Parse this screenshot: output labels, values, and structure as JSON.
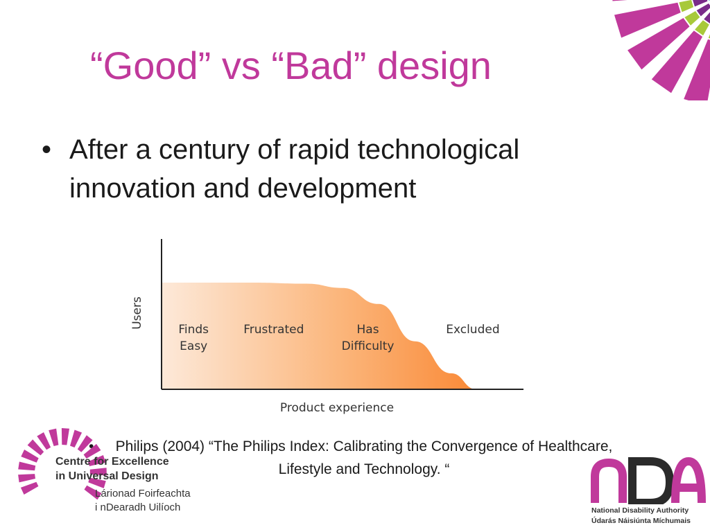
{
  "slide": {
    "title": "“Good” vs “Bad” design",
    "bullet_symbol": "•",
    "bullet_text": "After a century of rapid technological innovation and development",
    "reference_symbol": "•",
    "reference_text": "Philips (2004) “The Philips Index: Calibrating the Convergence of Healthcare, Lifestyle and Technology. “"
  },
  "chart_data": {
    "type": "area",
    "xlabel": "Product experience",
    "ylabel": "Users",
    "regions": [
      {
        "label_lines": [
          "Finds",
          "Easy"
        ]
      },
      {
        "label_lines": [
          "Frustrated"
        ]
      },
      {
        "label_lines": [
          "Has",
          "Difficulty"
        ]
      },
      {
        "label_lines": [
          "Excluded"
        ]
      }
    ],
    "curve": [
      [
        0,
        100
      ],
      [
        25,
        100
      ],
      [
        40,
        99
      ],
      [
        50,
        95
      ],
      [
        60,
        80
      ],
      [
        70,
        45
      ],
      [
        80,
        15
      ],
      [
        87,
        0
      ],
      [
        100,
        0
      ]
    ],
    "gradient_colors": [
      "#fde9d9",
      "#fbb57a",
      "#f97a1f"
    ],
    "grid": false
  },
  "logos": {
    "ceud": {
      "line1": "Centre for Excellence",
      "line2": "in Universal Design",
      "line3": "Lárionad Foirfeachta",
      "line4": "i nDearadh Uilíoch"
    },
    "nda": {
      "wordmark": "nDA",
      "line1": "National Disability Authority",
      "line2": "Údarás Náisiúnta Míchumais"
    }
  },
  "colors": {
    "accent": "#c0399b",
    "green": "#a8c93a",
    "blue": "#29a3d6"
  }
}
